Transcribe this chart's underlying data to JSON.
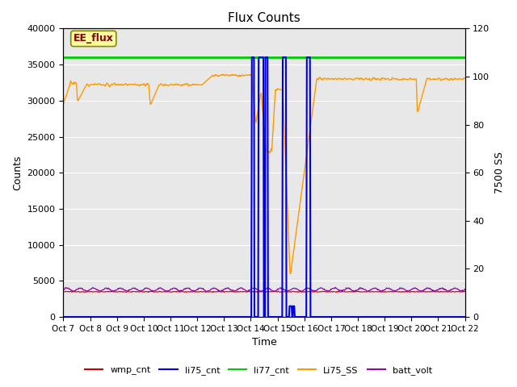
{
  "title": "Flux Counts",
  "xlabel": "Time",
  "ylabel_left": "Counts",
  "ylabel_right": "7500 SS",
  "annotation_text": "EE_flux",
  "x_tick_labels": [
    "Oct 7",
    "Oct 8",
    "Oct 9",
    "Oct 10",
    "Oct 11",
    "Oct 12",
    "Oct 13",
    "Oct 14",
    "Oct 15",
    "Oct 16",
    "Oct 17",
    "Oct 18",
    "Oct 19",
    "Oct 20",
    "Oct 21",
    "Oct 22"
  ],
  "ylim_left": [
    0,
    40000
  ],
  "ylim_right": [
    0,
    120
  ],
  "yticks_left": [
    0,
    5000,
    10000,
    15000,
    20000,
    25000,
    30000,
    35000,
    40000
  ],
  "yticks_right": [
    0,
    20,
    40,
    60,
    80,
    100,
    120
  ],
  "bg_color": "#e8e8e8",
  "series_colors": {
    "wmp_cnt": "#cc0000",
    "li75_cnt": "#0000dd",
    "li77_cnt": "#00cc00",
    "Li75_SS": "#ff9900",
    "batt_volt": "#9900aa"
  },
  "li77_level": 36000,
  "batt_base": 3800,
  "batt_amp": 200,
  "batt_freq": 60,
  "wmp_base": 3500,
  "annotation_facecolor": "#ffffa0",
  "annotation_edgecolor": "#888800",
  "annotation_textcolor": "#880000",
  "grid_color": "white",
  "title_fontsize": 11
}
